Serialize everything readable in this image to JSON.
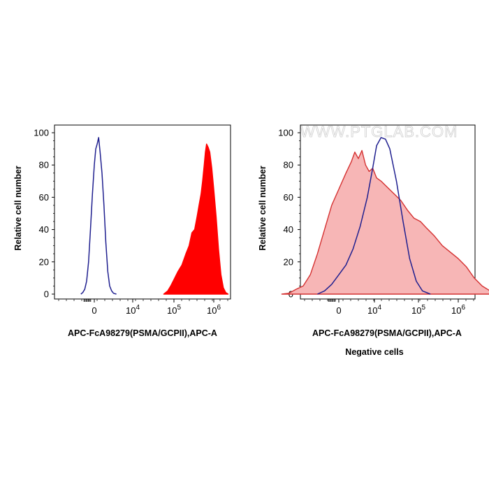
{
  "watermark": "WWW.PTGLAB.COM",
  "chart_data": [
    {
      "type": "area",
      "xlabel": "APC-FcA98279(PSMA/GCPII),APC-A",
      "ylabel": "Relative cell number",
      "caption": "",
      "ylim": [
        0,
        100
      ],
      "y_ticks": [
        0,
        20,
        40,
        60,
        80,
        100
      ],
      "x_ticks": [
        {
          "label": "0",
          "exp": ""
        },
        {
          "label": "10",
          "exp": "4"
        },
        {
          "label": "10",
          "exp": "5"
        },
        {
          "label": "10",
          "exp": "6"
        }
      ],
      "series": [
        {
          "fill": "none",
          "stroke": "#1f1f8f",
          "points": [
            [
              -1.4,
              0
            ],
            [
              -1.2,
              1
            ],
            [
              -1.0,
              3
            ],
            [
              -0.8,
              8
            ],
            [
              -0.6,
              20
            ],
            [
              -0.4,
              40
            ],
            [
              -0.2,
              62
            ],
            [
              0.0,
              80
            ],
            [
              0.15,
              90
            ],
            [
              0.3,
              93
            ],
            [
              0.45,
              97
            ],
            [
              0.6,
              88
            ],
            [
              0.8,
              75
            ],
            [
              1.0,
              55
            ],
            [
              1.2,
              32
            ],
            [
              1.4,
              14
            ],
            [
              1.6,
              5
            ],
            [
              1.8,
              2
            ],
            [
              2.0,
              0.5
            ],
            [
              2.3,
              0
            ]
          ]
        },
        {
          "fill": "#ff0000",
          "stroke": "#ff0000",
          "points": [
            [
              4.75,
              0
            ],
            [
              4.85,
              2
            ],
            [
              4.92,
              5
            ],
            [
              5.0,
              9
            ],
            [
              5.1,
              14
            ],
            [
              5.2,
              18
            ],
            [
              5.3,
              25
            ],
            [
              5.38,
              30
            ],
            [
              5.45,
              38
            ],
            [
              5.52,
              40
            ],
            [
              5.58,
              48
            ],
            [
              5.63,
              55
            ],
            [
              5.68,
              62
            ],
            [
              5.72,
              70
            ],
            [
              5.76,
              80
            ],
            [
              5.79,
              88
            ],
            [
              5.82,
              93
            ],
            [
              5.86,
              91
            ],
            [
              5.9,
              88
            ],
            [
              5.95,
              78
            ],
            [
              6.0,
              65
            ],
            [
              6.06,
              48
            ],
            [
              6.12,
              28
            ],
            [
              6.18,
              12
            ],
            [
              6.24,
              4
            ],
            [
              6.3,
              1
            ],
            [
              6.36,
              0
            ]
          ]
        }
      ]
    },
    {
      "type": "area",
      "xlabel": "APC-FcA98279(PSMA/GCPII),APC-A",
      "ylabel": "Relative cell number",
      "caption": "Negative cells",
      "ylim": [
        0,
        100
      ],
      "y_ticks": [
        0,
        20,
        40,
        60,
        80,
        100
      ],
      "x_ticks": [
        {
          "label": "0",
          "exp": ""
        },
        {
          "label": "10",
          "exp": "4"
        },
        {
          "label": "10",
          "exp": "5"
        },
        {
          "label": "10",
          "exp": "6"
        }
      ],
      "series": [
        {
          "fill": "#f7b6b6",
          "stroke": "#d43030",
          "points": [
            [
              -1.6,
              0
            ],
            [
              -1.4,
              0.5
            ],
            [
              -1.2,
              3
            ],
            [
              -1.0,
              5
            ],
            [
              -0.8,
              12
            ],
            [
              -0.6,
              25
            ],
            [
              -0.4,
              40
            ],
            [
              -0.2,
              55
            ],
            [
              0.0,
              65
            ],
            [
              0.2,
              75
            ],
            [
              0.35,
              82
            ],
            [
              0.45,
              88
            ],
            [
              0.55,
              84
            ],
            [
              0.65,
              89
            ],
            [
              0.75,
              80
            ],
            [
              0.85,
              76
            ],
            [
              0.95,
              78
            ],
            [
              1.05,
              72
            ],
            [
              1.15,
              70
            ],
            [
              1.3,
              66
            ],
            [
              1.45,
              62
            ],
            [
              1.6,
              58
            ],
            [
              1.75,
              52
            ],
            [
              1.9,
              47
            ],
            [
              2.05,
              45
            ],
            [
              2.2,
              41
            ],
            [
              2.4,
              36
            ],
            [
              2.6,
              30
            ],
            [
              2.8,
              26
            ],
            [
              3.0,
              22
            ],
            [
              3.2,
              17
            ],
            [
              3.4,
              10
            ],
            [
              3.6,
              5
            ],
            [
              3.8,
              2
            ],
            [
              4.0,
              0
            ]
          ]
        },
        {
          "fill": "none",
          "stroke": "#1f1f8f",
          "points": [
            [
              -0.6,
              0
            ],
            [
              -0.4,
              2
            ],
            [
              -0.2,
              6
            ],
            [
              0.0,
              12
            ],
            [
              0.2,
              18
            ],
            [
              0.4,
              28
            ],
            [
              0.6,
              42
            ],
            [
              0.8,
              60
            ],
            [
              0.95,
              78
            ],
            [
              1.05,
              92
            ],
            [
              1.15,
              97
            ],
            [
              1.25,
              96
            ],
            [
              1.35,
              90
            ],
            [
              1.5,
              70
            ],
            [
              1.65,
              45
            ],
            [
              1.8,
              22
            ],
            [
              1.95,
              8
            ],
            [
              2.1,
              2
            ],
            [
              2.3,
              0
            ]
          ]
        }
      ]
    }
  ]
}
